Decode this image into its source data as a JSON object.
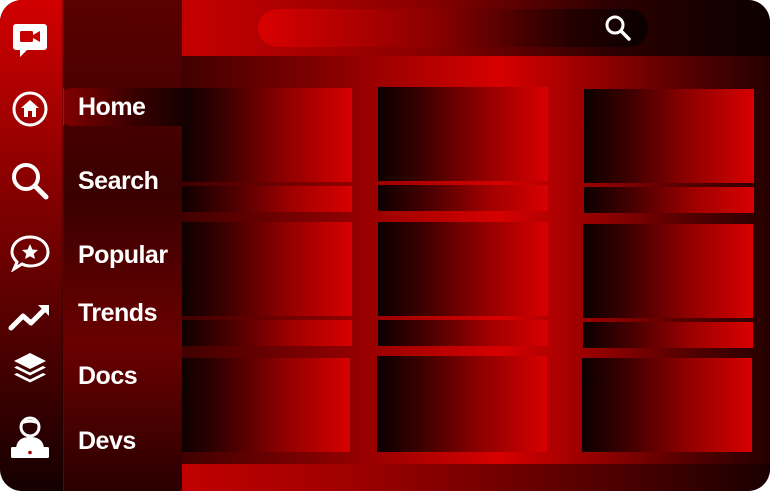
{
  "sidebar": {
    "items": [
      {
        "label": "Home",
        "icon": "home-icon",
        "active": true
      },
      {
        "label": "Search",
        "icon": "search-icon"
      },
      {
        "label": "Popular",
        "icon": "star-chat-icon"
      },
      {
        "label": "Trends",
        "icon": "trend-up-icon"
      },
      {
        "label": "Docs",
        "icon": "layers-icon"
      },
      {
        "label": "Devs",
        "icon": "developer-icon"
      }
    ]
  },
  "app": {
    "logo_icon": "video-chat-icon"
  },
  "search": {
    "icon": "magnifier-icon"
  },
  "colors": {
    "primary": "#d00000",
    "dark": "#150000",
    "text": "#ffffff"
  }
}
